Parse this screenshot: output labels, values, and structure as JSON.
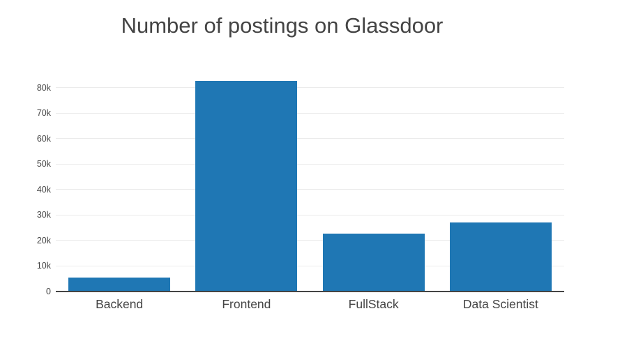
{
  "chart_data": {
    "type": "bar",
    "title": "Number of postings on Glassdoor",
    "categories": [
      "Backend",
      "Frontend",
      "FullStack",
      "Data Scientist"
    ],
    "values": [
      5600,
      82700,
      22800,
      27200
    ],
    "xlabel": "",
    "ylabel": "",
    "ylim": [
      0,
      87000
    ],
    "yticks": {
      "values": [
        0,
        10000,
        20000,
        30000,
        40000,
        50000,
        60000,
        70000,
        80000
      ],
      "labels": [
        "0",
        "10k",
        "20k",
        "30k",
        "40k",
        "50k",
        "60k",
        "70k",
        "80k"
      ]
    },
    "grid": true,
    "legend": false,
    "bar_color": "#1f77b4",
    "gridline_color": "#ebebeb",
    "axis_line_color": "#444444",
    "text_color": "#444444",
    "background_color": "#ffffff"
  }
}
